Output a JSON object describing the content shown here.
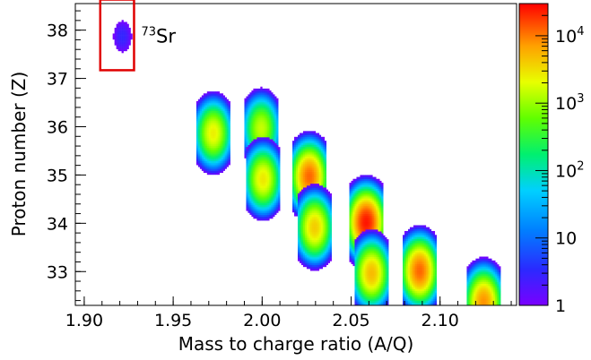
{
  "chart_data": {
    "type": "heatmap",
    "title": "",
    "xlabel": "Mass to charge ratio (A/Q)",
    "ylabel": "Proton number (Z)",
    "xlim": [
      1.895,
      2.143
    ],
    "ylim": [
      32.3,
      38.55
    ],
    "x_ticks": [
      "1.90",
      "1.95",
      "2.00",
      "2.05",
      "2.10"
    ],
    "x_tick_values": [
      1.9,
      1.95,
      2.0,
      2.05,
      2.1
    ],
    "y_ticks": [
      "33",
      "34",
      "35",
      "36",
      "37",
      "38"
    ],
    "y_tick_values": [
      33,
      34,
      35,
      36,
      37,
      38
    ],
    "colorbar": {
      "scale": "log",
      "range": [
        1,
        30000
      ],
      "tick_labels": [
        {
          "value": 1,
          "base": "1",
          "exp": ""
        },
        {
          "value": 10,
          "base": "10",
          "exp": ""
        },
        {
          "value": 100,
          "base": "10",
          "exp": "2"
        },
        {
          "value": 1000,
          "base": "10",
          "exp": "3"
        },
        {
          "value": 10000,
          "base": "10",
          "exp": "4"
        }
      ]
    },
    "annotation": {
      "mass": "73",
      "element": "Sr",
      "box_x": [
        1.909,
        1.928
      ],
      "box_y": [
        37.17,
        38.67
      ]
    },
    "blobs": [
      {
        "x": 1.921,
        "z": 37.85,
        "peak": 3
      },
      {
        "x": 1.972,
        "z": 35.85,
        "peak": 2500
      },
      {
        "x": 1.999,
        "z": 35.95,
        "peak": 1500
      },
      {
        "x": 2.0,
        "z": 34.9,
        "peak": 2800
      },
      {
        "x": 2.026,
        "z": 34.95,
        "peak": 12000
      },
      {
        "x": 2.029,
        "z": 33.9,
        "peak": 4000
      },
      {
        "x": 2.058,
        "z": 34.0,
        "peak": 25000
      },
      {
        "x": 2.061,
        "z": 32.95,
        "peak": 5000
      },
      {
        "x": 2.088,
        "z": 33.0,
        "peak": 12000
      },
      {
        "x": 2.124,
        "z": 32.35,
        "peak": 8000
      }
    ]
  }
}
